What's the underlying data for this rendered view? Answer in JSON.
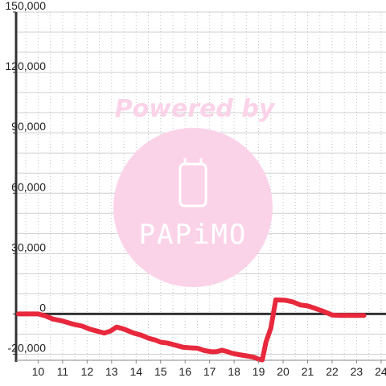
{
  "chart_data": {
    "type": "line",
    "x_ticks": [
      "10",
      "11",
      "12",
      "13",
      "14",
      "15",
      "16",
      "17",
      "18",
      "19",
      "20",
      "21",
      "22",
      "23",
      "24"
    ],
    "y_ticks": [
      "-20,000",
      "0",
      "30,000",
      "60,000",
      "90,000",
      "120,000",
      "150,000"
    ],
    "xlim": [
      9.1,
      24.2
    ],
    "ylim": [
      -23000,
      150000
    ],
    "grid": true,
    "series": [
      {
        "color": "#e8283c",
        "points": [
          [
            9.2,
            0
          ],
          [
            10.0,
            0
          ],
          [
            10.3,
            -1000
          ],
          [
            10.6,
            -2500
          ],
          [
            11.0,
            -3500
          ],
          [
            11.4,
            -5000
          ],
          [
            11.8,
            -6000
          ],
          [
            12.1,
            -7500
          ],
          [
            12.4,
            -8500
          ],
          [
            12.7,
            -9500
          ],
          [
            12.95,
            -8500
          ],
          [
            13.2,
            -6500
          ],
          [
            13.5,
            -7500
          ],
          [
            13.9,
            -9500
          ],
          [
            14.2,
            -10500
          ],
          [
            14.5,
            -12000
          ],
          [
            14.8,
            -13000
          ],
          [
            15.0,
            -14000
          ],
          [
            15.3,
            -14500
          ],
          [
            15.6,
            -15500
          ],
          [
            15.9,
            -16500
          ],
          [
            16.2,
            -16800
          ],
          [
            16.5,
            -17000
          ],
          [
            16.8,
            -18200
          ],
          [
            17.1,
            -18800
          ],
          [
            17.3,
            -18700
          ],
          [
            17.5,
            -18000
          ],
          [
            17.7,
            -18600
          ],
          [
            17.9,
            -19500
          ],
          [
            18.2,
            -20200
          ],
          [
            18.5,
            -20800
          ],
          [
            18.8,
            -21500
          ],
          [
            19.0,
            -22500
          ],
          [
            19.15,
            -22800
          ],
          [
            19.3,
            -14000
          ],
          [
            19.5,
            -7000
          ],
          [
            19.7,
            7000
          ],
          [
            20.1,
            6800
          ],
          [
            20.4,
            6000
          ],
          [
            20.7,
            4500
          ],
          [
            21.0,
            4000
          ],
          [
            21.3,
            2800
          ],
          [
            21.6,
            1500
          ],
          [
            21.8,
            500
          ],
          [
            22.0,
            -500
          ],
          [
            22.3,
            -700
          ],
          [
            22.6,
            -700
          ],
          [
            23.0,
            -700
          ],
          [
            23.3,
            -700
          ]
        ]
      }
    ]
  },
  "watermark": {
    "line1": "Powered by",
    "brand": "PAPiMO"
  }
}
